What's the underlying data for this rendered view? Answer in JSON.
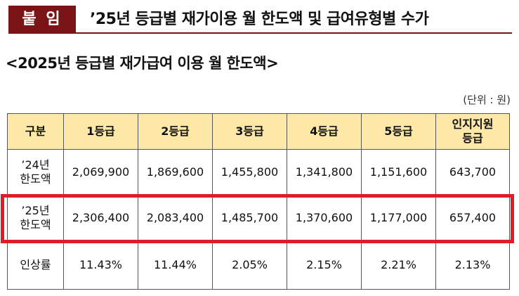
{
  "header": {
    "badge": "붙 임",
    "title": "’25년 등급별 재가이용 월 한도액 및 급여유형별 수가"
  },
  "subtitle": "<2025년 등급별 재가급여 이용 월 한도액>",
  "unit": "(단위 : 원)",
  "colors": {
    "badge_bg": "#7b1416",
    "header_fill": "#fde8a8",
    "highlight": "#e01c24"
  },
  "table": {
    "headers": [
      "구분",
      "1등급",
      "2등급",
      "3등급",
      "4등급",
      "5등급",
      "인지지원 등급"
    ],
    "rows": [
      {
        "label_line1": "’24년",
        "label_line2": "한도액",
        "cells": [
          "2,069,900",
          "1,869,600",
          "1,455,800",
          "1,341,800",
          "1,151,600",
          "643,700"
        ]
      },
      {
        "label_line1": "’25년",
        "label_line2": "한도액",
        "cells": [
          "2,306,400",
          "2,083,400",
          "1,485,700",
          "1,370,600",
          "1,177,000",
          "657,400"
        ]
      },
      {
        "label": "인상률",
        "cells": [
          "11.43%",
          "11.44%",
          "2.05%",
          "2.15%",
          "2.21%",
          "2.13%"
        ]
      }
    ]
  }
}
